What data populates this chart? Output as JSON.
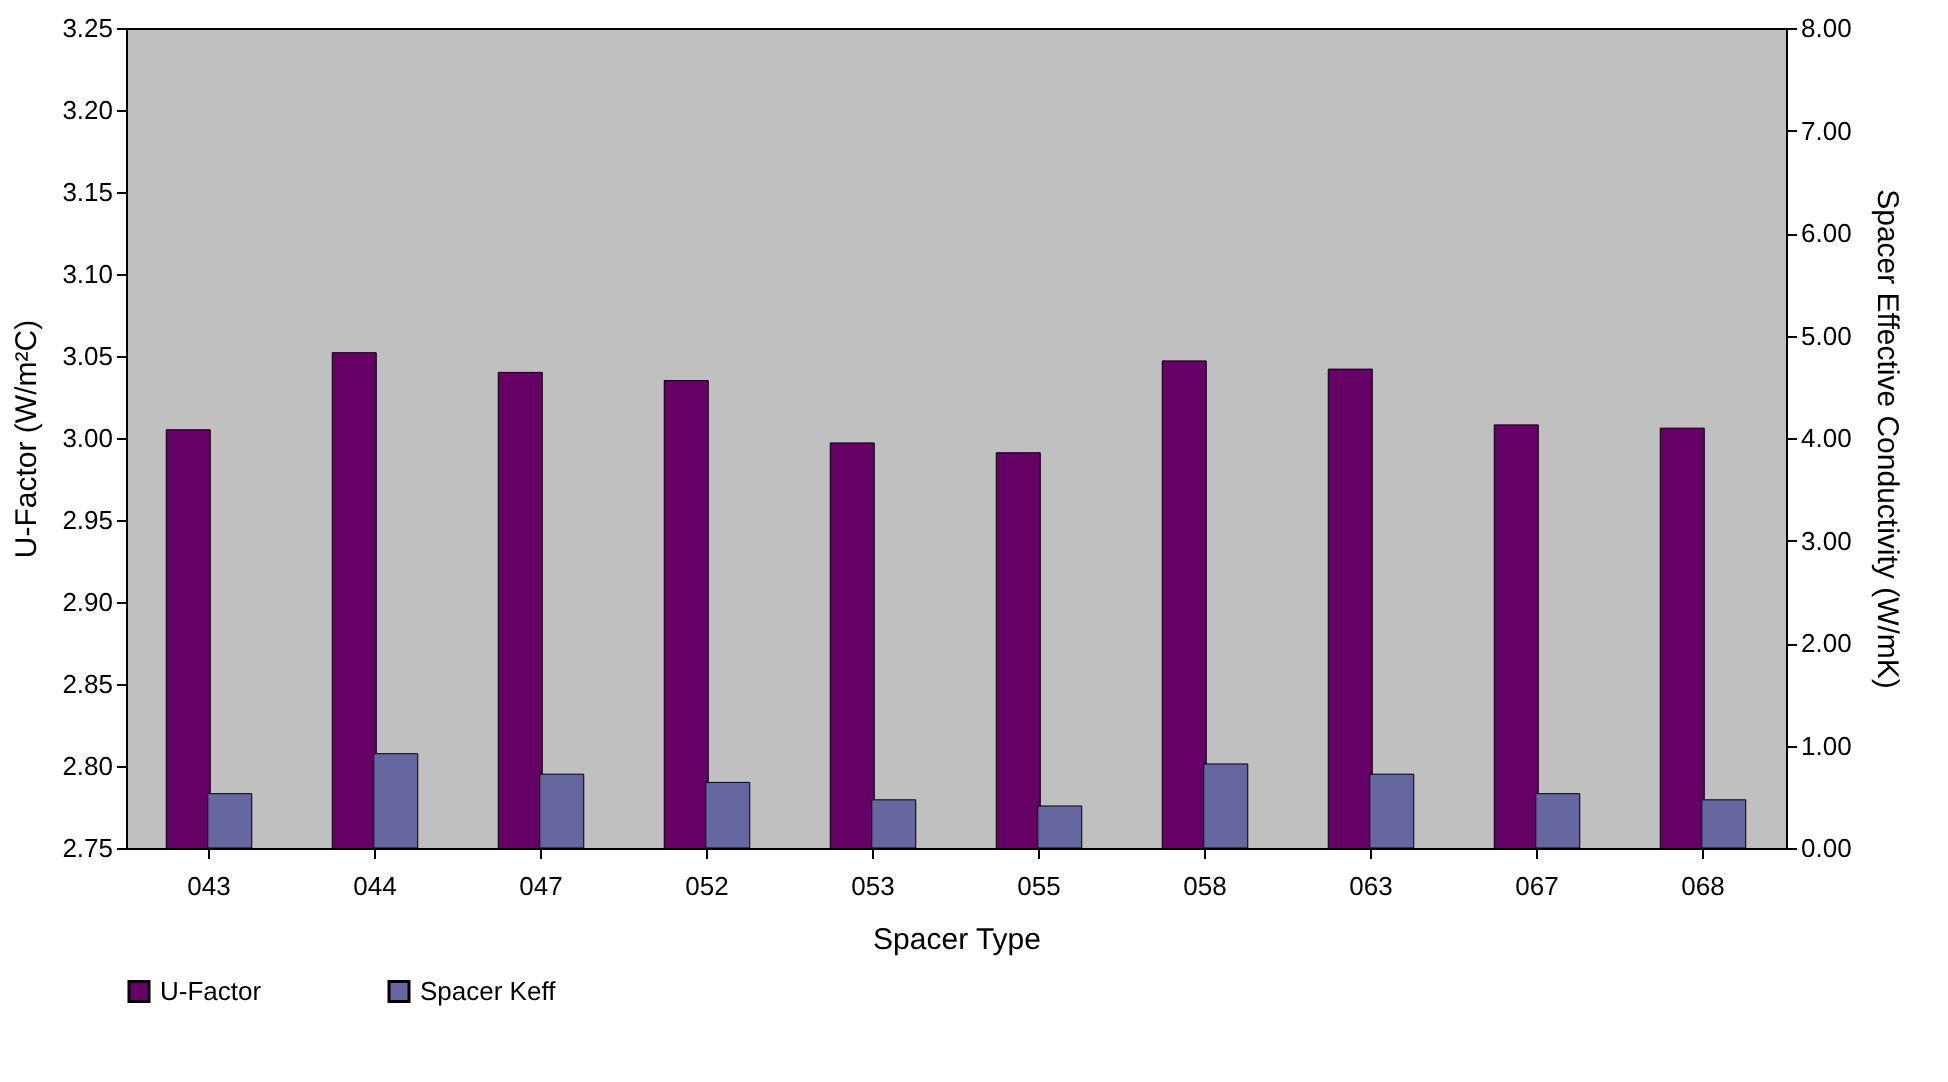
{
  "chart_data": {
    "type": "bar",
    "categories": [
      "043",
      "044",
      "047",
      "052",
      "053",
      "055",
      "058",
      "063",
      "067",
      "068"
    ],
    "xlabel": "Spacer Type",
    "ylabel": "U-Factor (W/m²C)",
    "y2label": "Spacer Effective Conductivity (W/mK)",
    "series": [
      {
        "name": "U-Factor",
        "color": "#660066",
        "values": [
          3.005,
          3.052,
          3.04,
          3.035,
          2.997,
          2.991,
          3.047,
          3.042,
          3.008,
          3.006
        ]
      },
      {
        "name": "Spacer Keff",
        "color": "#6666a0",
        "axis": "y2",
        "values": [
          0.53,
          0.92,
          0.72,
          0.64,
          0.47,
          0.41,
          0.82,
          0.72,
          0.53,
          0.47
        ]
      }
    ],
    "ylim": [
      2.75,
      3.25
    ],
    "yticks": [
      {
        "value": 2.75,
        "label": "2.75"
      },
      {
        "value": 2.8,
        "label": "2.80"
      },
      {
        "value": 2.85,
        "label": "2.85"
      },
      {
        "value": 2.9,
        "label": "2.90"
      },
      {
        "value": 2.95,
        "label": "2.95"
      },
      {
        "value": 3.0,
        "label": "3.00"
      },
      {
        "value": 3.05,
        "label": "3.05"
      },
      {
        "value": 3.1,
        "label": "3.10"
      },
      {
        "value": 3.15,
        "label": "3.15"
      },
      {
        "value": 3.2,
        "label": "3.20"
      },
      {
        "value": 3.25,
        "label": "3.25"
      }
    ],
    "y2lim": [
      0,
      8
    ],
    "y2ticks": [
      {
        "value": 0,
        "label": "0.00"
      },
      {
        "value": 1,
        "label": "1.00"
      },
      {
        "value": 2,
        "label": "2.00"
      },
      {
        "value": 3,
        "label": "3.00"
      },
      {
        "value": 4,
        "label": "4.00"
      },
      {
        "value": 5,
        "label": "5.00"
      },
      {
        "value": 6,
        "label": "6.00"
      },
      {
        "value": 7,
        "label": "7.00"
      },
      {
        "value": 8,
        "label": "8.00"
      }
    ],
    "grid": false,
    "legend": "bottom"
  }
}
